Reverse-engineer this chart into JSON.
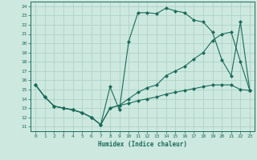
{
  "xlabel": "Humidex (Indice chaleur)",
  "bg_color": "#cde8df",
  "line_color": "#1a6b5a",
  "grid_color": "#a8cfc0",
  "xlim": [
    -0.5,
    23.5
  ],
  "ylim": [
    10.5,
    24.5
  ],
  "xticks": [
    0,
    1,
    2,
    3,
    4,
    5,
    6,
    7,
    8,
    9,
    10,
    11,
    12,
    13,
    14,
    15,
    16,
    17,
    18,
    19,
    20,
    21,
    22,
    23
  ],
  "yticks": [
    11,
    12,
    13,
    14,
    15,
    16,
    17,
    18,
    19,
    20,
    21,
    22,
    23,
    24
  ],
  "line1_x": [
    0,
    1,
    2,
    3,
    4,
    5,
    6,
    7,
    8,
    9,
    10,
    11,
    12,
    13,
    14,
    15,
    16,
    17,
    18,
    19,
    20,
    21,
    22,
    23
  ],
  "line1_y": [
    15.5,
    14.2,
    13.2,
    13.0,
    12.8,
    12.5,
    12.0,
    11.2,
    15.3,
    12.8,
    20.2,
    23.3,
    23.3,
    23.2,
    23.8,
    23.5,
    23.3,
    22.5,
    22.3,
    21.2,
    18.2,
    16.5,
    22.3,
    14.9
  ],
  "line2_x": [
    0,
    1,
    2,
    3,
    4,
    5,
    6,
    7,
    8,
    9,
    10,
    11,
    12,
    13,
    14,
    15,
    16,
    17,
    18,
    19,
    20,
    21,
    22,
    23
  ],
  "line2_y": [
    15.5,
    14.2,
    13.2,
    13.0,
    12.8,
    12.5,
    12.0,
    11.2,
    13.0,
    13.3,
    14.0,
    14.7,
    15.2,
    15.5,
    16.5,
    17.0,
    17.5,
    18.3,
    19.0,
    20.3,
    21.0,
    21.2,
    18.0,
    14.9
  ],
  "line3_x": [
    0,
    1,
    2,
    3,
    4,
    5,
    6,
    7,
    8,
    9,
    10,
    11,
    12,
    13,
    14,
    15,
    16,
    17,
    18,
    19,
    20,
    21,
    22,
    23
  ],
  "line3_y": [
    15.5,
    14.2,
    13.2,
    13.0,
    12.8,
    12.5,
    12.0,
    11.2,
    13.0,
    13.3,
    13.5,
    13.8,
    14.0,
    14.2,
    14.5,
    14.7,
    14.9,
    15.1,
    15.3,
    15.5,
    15.5,
    15.5,
    15.0,
    14.9
  ]
}
